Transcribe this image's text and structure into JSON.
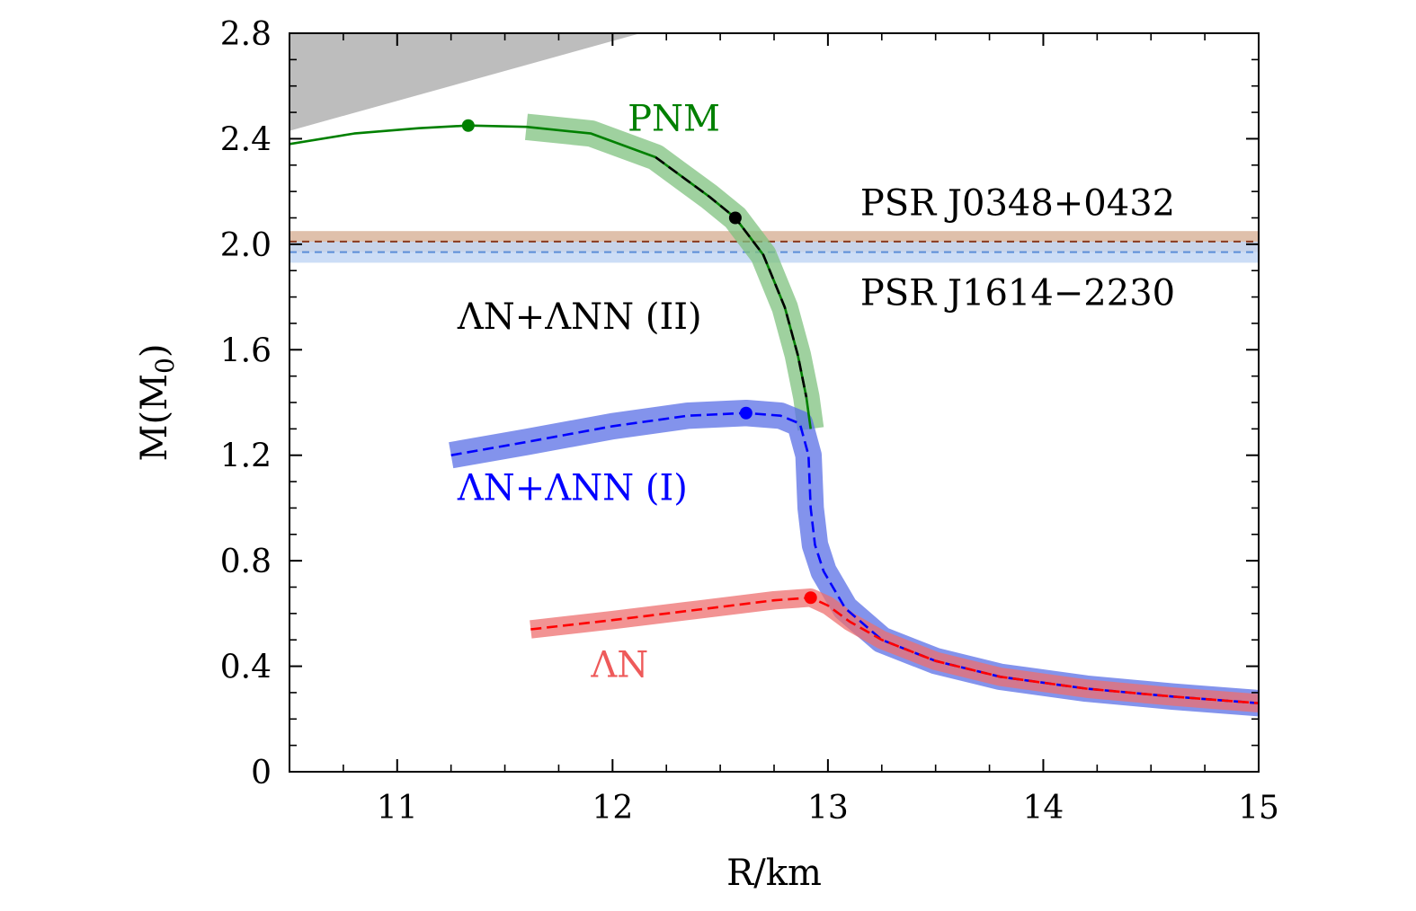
{
  "chart_data": {
    "type": "line",
    "xlabel": "R/km",
    "ylabel": "M(M0)",
    "ylabel_main": "M(M",
    "ylabel_sub": "0",
    "ylabel_close": ")",
    "xlim": [
      10.5,
      15
    ],
    "ylim": [
      0,
      2.8
    ],
    "xticks": [
      11,
      12,
      13,
      14,
      15
    ],
    "xtick_labels": [
      "11",
      "12",
      "13",
      "14",
      "15"
    ],
    "yticks": [
      0,
      0.4,
      0.8,
      1.2,
      1.6,
      2.0,
      2.4,
      2.8
    ],
    "ytick_labels": [
      "0",
      "0.4",
      "0.8",
      "1.2",
      "1.6",
      "2.0",
      "2.4",
      "2.8"
    ],
    "grid": false,
    "excluded_region": {
      "color": "#bdbdbd",
      "points": [
        [
          10.5,
          2.8
        ],
        [
          12.13,
          2.8
        ],
        [
          10.5,
          2.43
        ]
      ]
    },
    "bands": [
      {
        "label": "PSR J0348+0432",
        "center": 2.01,
        "low": 1.97,
        "high": 2.05,
        "band_color": "#d9b59c",
        "line_color": "#8b3a1e"
      },
      {
        "label": "PSR J1614−2230",
        "center": 1.97,
        "low": 1.93,
        "high": 2.01,
        "band_color": "#c3d7f4",
        "line_color": "#5b8ed8"
      }
    ],
    "series": [
      {
        "name": "PNM",
        "color": "#008000",
        "band_color": "#7fc27f",
        "dash": "solid",
        "points": [
          [
            10.5,
            2.38
          ],
          [
            10.8,
            2.42
          ],
          [
            11.1,
            2.44
          ],
          [
            11.33,
            2.45
          ],
          [
            11.6,
            2.445
          ],
          [
            11.9,
            2.42
          ],
          [
            12.2,
            2.33
          ],
          [
            12.45,
            2.18
          ],
          [
            12.57,
            2.1
          ],
          [
            12.7,
            1.96
          ],
          [
            12.8,
            1.76
          ],
          [
            12.86,
            1.58
          ],
          [
            12.9,
            1.42
          ],
          [
            12.92,
            1.3
          ]
        ],
        "band_from": 11.6,
        "band_halfwidth": 0.05,
        "max_point": [
          11.33,
          2.45
        ]
      },
      {
        "name": "ΛN+ΛNN (II)",
        "color": "#000000",
        "dash": "dashed",
        "points": [
          [
            12.2,
            2.33
          ],
          [
            12.45,
            2.18
          ],
          [
            12.57,
            2.1
          ],
          [
            12.7,
            1.96
          ],
          [
            12.8,
            1.76
          ],
          [
            12.86,
            1.58
          ],
          [
            12.9,
            1.42
          ]
        ],
        "max_point": [
          12.57,
          2.1
        ]
      },
      {
        "name": "ΛN+ΛNN (I)",
        "color": "#0000ff",
        "band_color": "#5a6fe6",
        "dash": "dashed",
        "points": [
          [
            11.25,
            1.2
          ],
          [
            11.6,
            1.25
          ],
          [
            12.0,
            1.31
          ],
          [
            12.35,
            1.35
          ],
          [
            12.62,
            1.36
          ],
          [
            12.78,
            1.35
          ],
          [
            12.87,
            1.32
          ],
          [
            12.91,
            1.2
          ],
          [
            12.92,
            1.0
          ],
          [
            12.94,
            0.86
          ],
          [
            12.98,
            0.76
          ],
          [
            13.08,
            0.62
          ],
          [
            13.25,
            0.5
          ],
          [
            13.5,
            0.42
          ],
          [
            13.8,
            0.36
          ],
          [
            14.2,
            0.315
          ],
          [
            14.6,
            0.285
          ],
          [
            15.0,
            0.26
          ]
        ],
        "band_halfwidth": 0.05,
        "max_point": [
          12.62,
          1.36
        ]
      },
      {
        "name": "ΛN",
        "color": "#ff0000",
        "band_color": "#ee6f6f",
        "dash": "dashed",
        "points": [
          [
            11.62,
            0.54
          ],
          [
            12.0,
            0.575
          ],
          [
            12.4,
            0.615
          ],
          [
            12.75,
            0.65
          ],
          [
            12.92,
            0.66
          ],
          [
            13.0,
            0.63
          ],
          [
            13.1,
            0.57
          ],
          [
            13.25,
            0.5
          ],
          [
            13.5,
            0.42
          ],
          [
            13.8,
            0.36
          ],
          [
            14.2,
            0.315
          ],
          [
            14.6,
            0.285
          ],
          [
            15.0,
            0.26
          ]
        ],
        "band_halfwidth": 0.035,
        "max_point": [
          12.92,
          0.66
        ]
      }
    ],
    "annotations": [
      {
        "text": "PNM",
        "x": 12.07,
        "y": 2.43,
        "color": "#008000"
      },
      {
        "text": "PSR J0348+0432",
        "x": 13.15,
        "y": 2.11,
        "color": "#000000"
      },
      {
        "text": "PSR J1614−2230",
        "x": 13.15,
        "y": 1.77,
        "color": "#000000"
      },
      {
        "text": "ΛN+ΛNN (II)",
        "x": 11.28,
        "y": 1.68,
        "color": "#000000"
      },
      {
        "text": "ΛN+ΛNN (I)",
        "x": 11.28,
        "y": 1.03,
        "color": "#0000ff"
      },
      {
        "text": "ΛN",
        "x": 11.9,
        "y": 0.36,
        "color": "#ee5a5a"
      }
    ]
  }
}
